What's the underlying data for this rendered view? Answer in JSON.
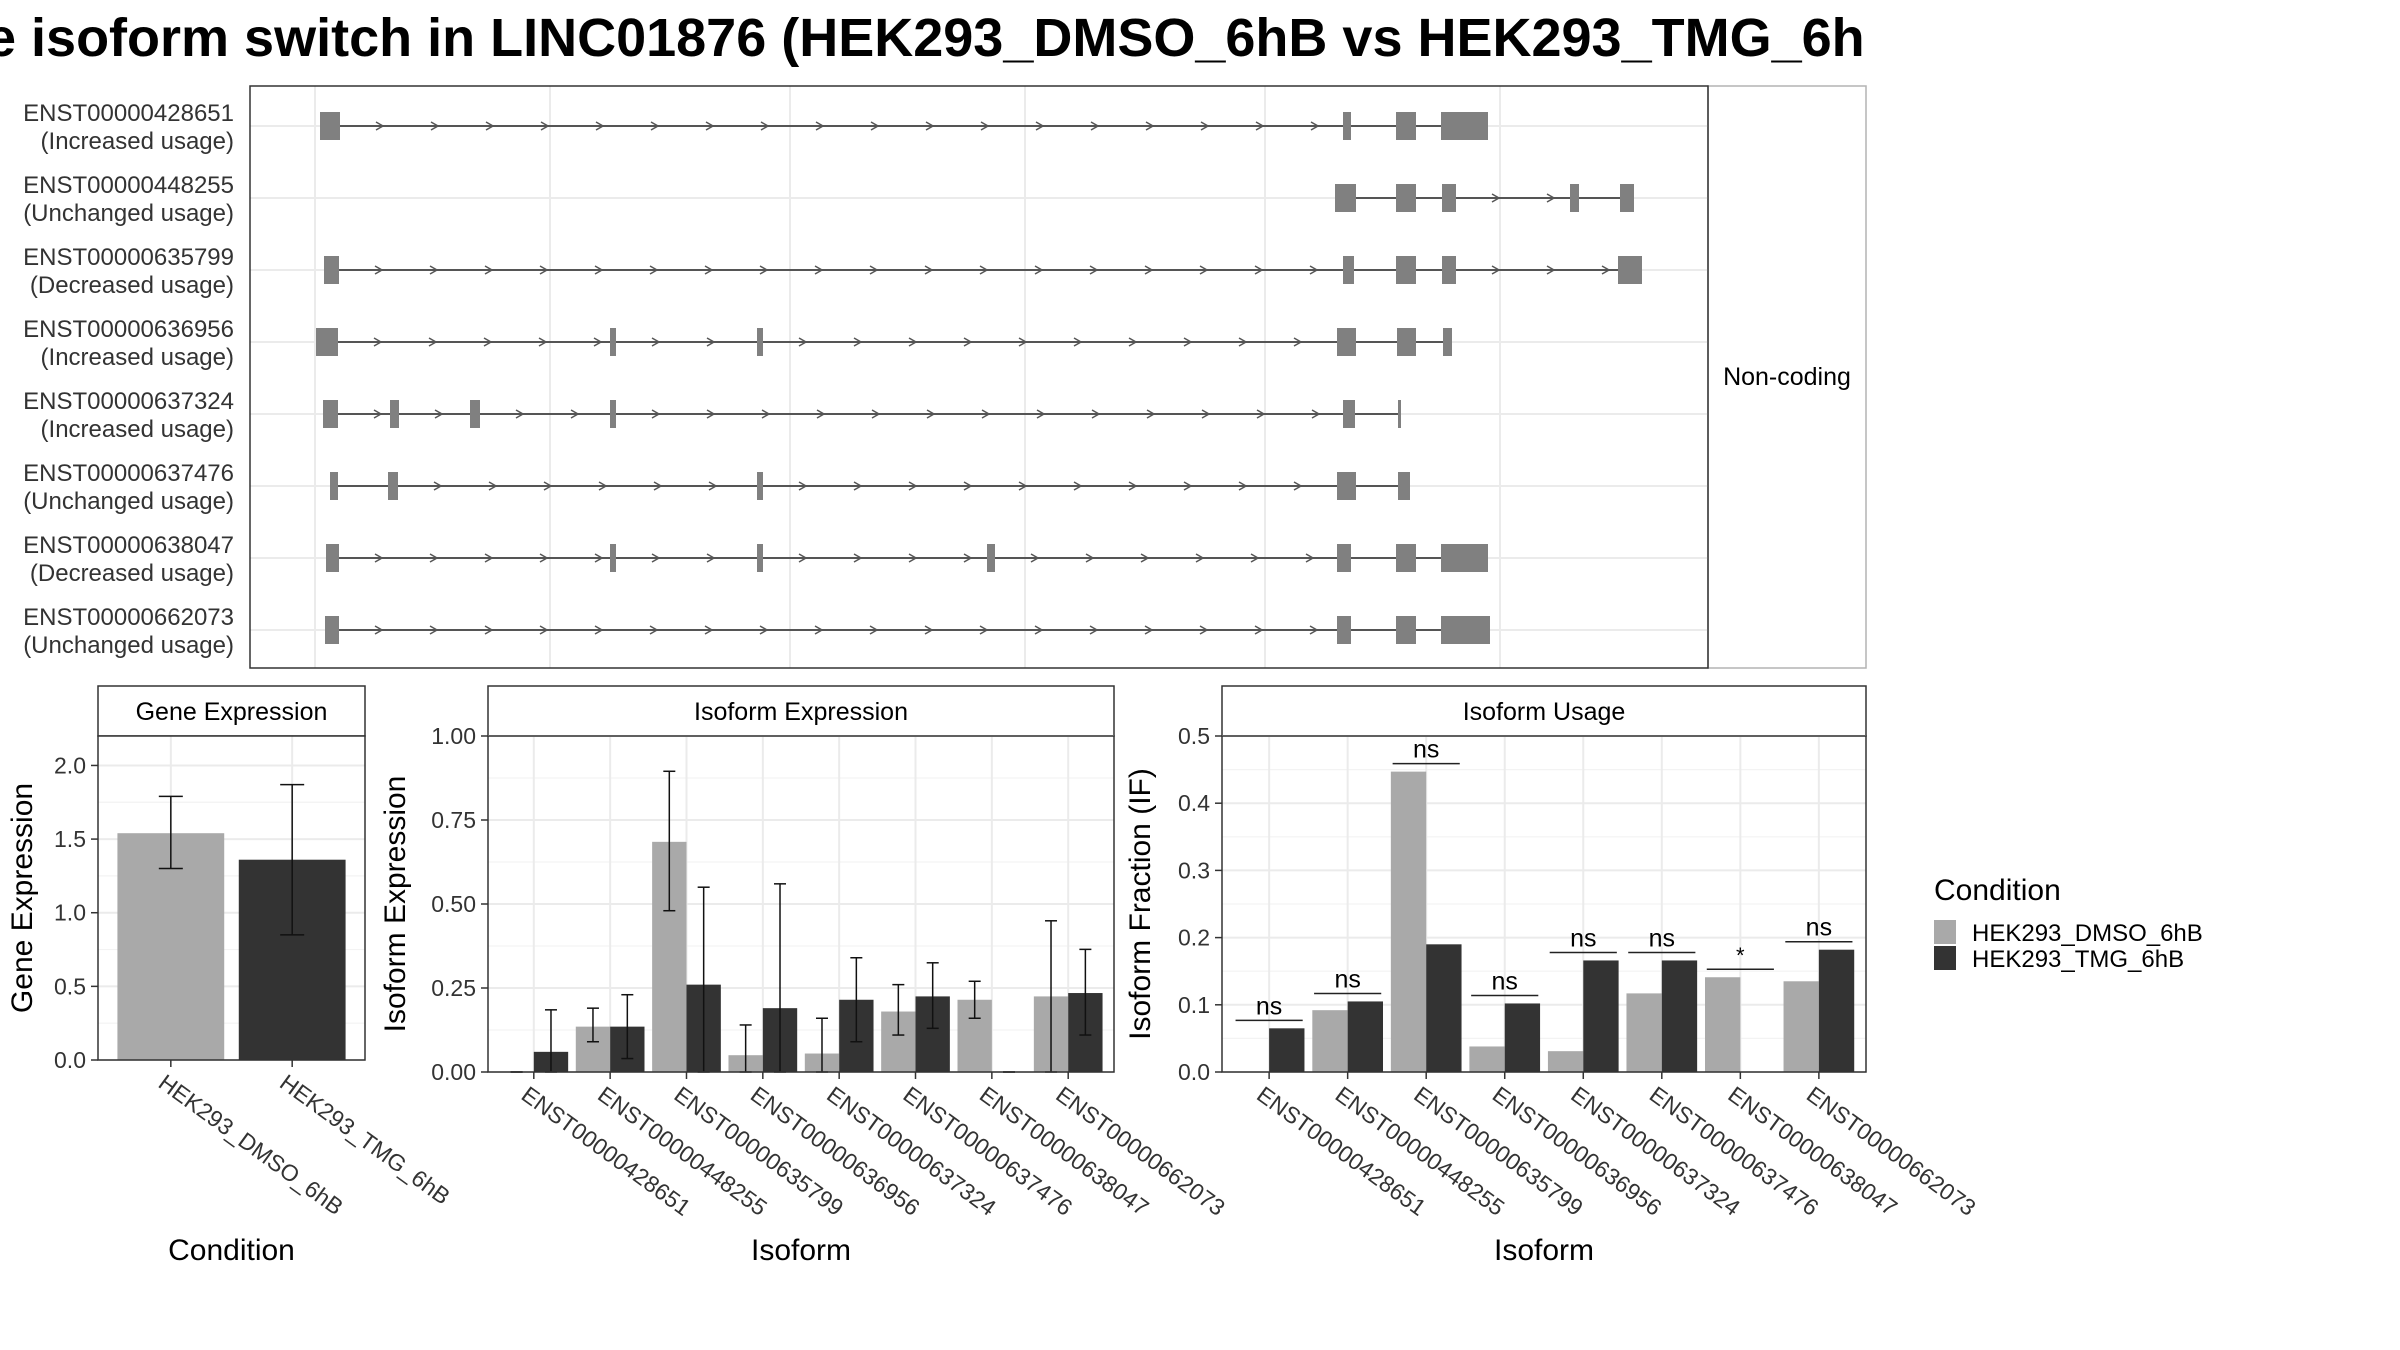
{
  "title": "e isoform switch in LINC01876 (HEK293_DMSO_6hB vs HEK293_TMG_6h",
  "colors": {
    "dmso": "#a9a9a9",
    "tmg": "#333333",
    "exon": "#808080",
    "grid": "#ebebeb"
  },
  "structure_panel": {
    "strip_label": "Non-coding",
    "isoforms": [
      {
        "id": "ENST00000428651",
        "status": "(Increased usage)"
      },
      {
        "id": "ENST00000448255",
        "status": "(Unchanged usage)"
      },
      {
        "id": "ENST00000635799",
        "status": "(Decreased usage)"
      },
      {
        "id": "ENST00000636956",
        "status": "(Increased usage)"
      },
      {
        "id": "ENST00000637324",
        "status": "(Increased usage)"
      },
      {
        "id": "ENST00000637476",
        "status": "(Unchanged usage)"
      },
      {
        "id": "ENST00000638047",
        "status": "(Decreased usage)"
      },
      {
        "id": "ENST00000662073",
        "status": "(Unchanged usage)"
      }
    ]
  },
  "legend": {
    "title": "Condition",
    "items": [
      "HEK293_DMSO_6hB",
      "HEK293_TMG_6hB"
    ]
  },
  "chart_data": [
    {
      "type": "bar",
      "title": "Gene Expression",
      "xlabel": "Condition",
      "ylabel": "Gene Expression",
      "ylim": [
        0,
        2.2
      ],
      "yticks": [
        "0.0",
        "0.5",
        "1.0",
        "1.5",
        "2.0"
      ],
      "categories": [
        "HEK293_DMSO_6hB",
        "HEK293_TMG_6hB"
      ],
      "values": [
        1.54,
        1.36
      ],
      "errors_low": [
        1.3,
        0.85
      ],
      "errors_high": [
        1.79,
        1.87
      ]
    },
    {
      "type": "bar",
      "title": "Isoform Expression",
      "xlabel": "Isoform",
      "ylabel": "Isoform Expression",
      "ylim": [
        0,
        1.0
      ],
      "yticks": [
        "0.00",
        "0.25",
        "0.50",
        "0.75",
        "1.00"
      ],
      "categories": [
        "ENST00000428651",
        "ENST00000448255",
        "ENST00000635799",
        "ENST00000636956",
        "ENST00000637324",
        "ENST00000637476",
        "ENST00000638047",
        "ENST00000662073"
      ],
      "series": [
        {
          "name": "HEK293_DMSO_6hB",
          "values": [
            0.0,
            0.135,
            0.685,
            0.05,
            0.055,
            0.18,
            0.215,
            0.225
          ],
          "err_low": [
            0.0,
            0.09,
            0.48,
            0.0,
            0.0,
            0.11,
            0.16,
            0.0
          ],
          "err_high": [
            0.0,
            0.19,
            0.895,
            0.14,
            0.16,
            0.26,
            0.27,
            0.45
          ]
        },
        {
          "name": "HEK293_TMG_6hB",
          "values": [
            0.06,
            0.135,
            0.26,
            0.19,
            0.215,
            0.225,
            0.0,
            0.235
          ],
          "err_low": [
            0.0,
            0.04,
            0.0,
            0.0,
            0.09,
            0.13,
            0.0,
            0.11
          ],
          "err_high": [
            0.185,
            0.23,
            0.55,
            0.56,
            0.34,
            0.325,
            0.0,
            0.365
          ]
        }
      ]
    },
    {
      "type": "bar",
      "title": "Isoform Usage",
      "xlabel": "Isoform",
      "ylabel": "Isoform Fraction (IF)",
      "ylim": [
        0,
        0.5
      ],
      "yticks": [
        "0.0",
        "0.1",
        "0.2",
        "0.3",
        "0.4",
        "0.5"
      ],
      "categories": [
        "ENST00000428651",
        "ENST00000448255",
        "ENST00000635799",
        "ENST00000636956",
        "ENST00000637324",
        "ENST00000637476",
        "ENST00000638047",
        "ENST00000662073"
      ],
      "series": [
        {
          "name": "HEK293_DMSO_6hB",
          "values": [
            0.0,
            0.092,
            0.447,
            0.038,
            0.031,
            0.117,
            0.141,
            0.135
          ]
        },
        {
          "name": "HEK293_TMG_6hB",
          "values": [
            0.065,
            0.105,
            0.19,
            0.102,
            0.166,
            0.166,
            0.0,
            0.182
          ]
        }
      ],
      "significance": [
        "ns",
        "ns",
        "ns",
        "ns",
        "ns",
        "ns",
        "*",
        "ns"
      ]
    }
  ]
}
